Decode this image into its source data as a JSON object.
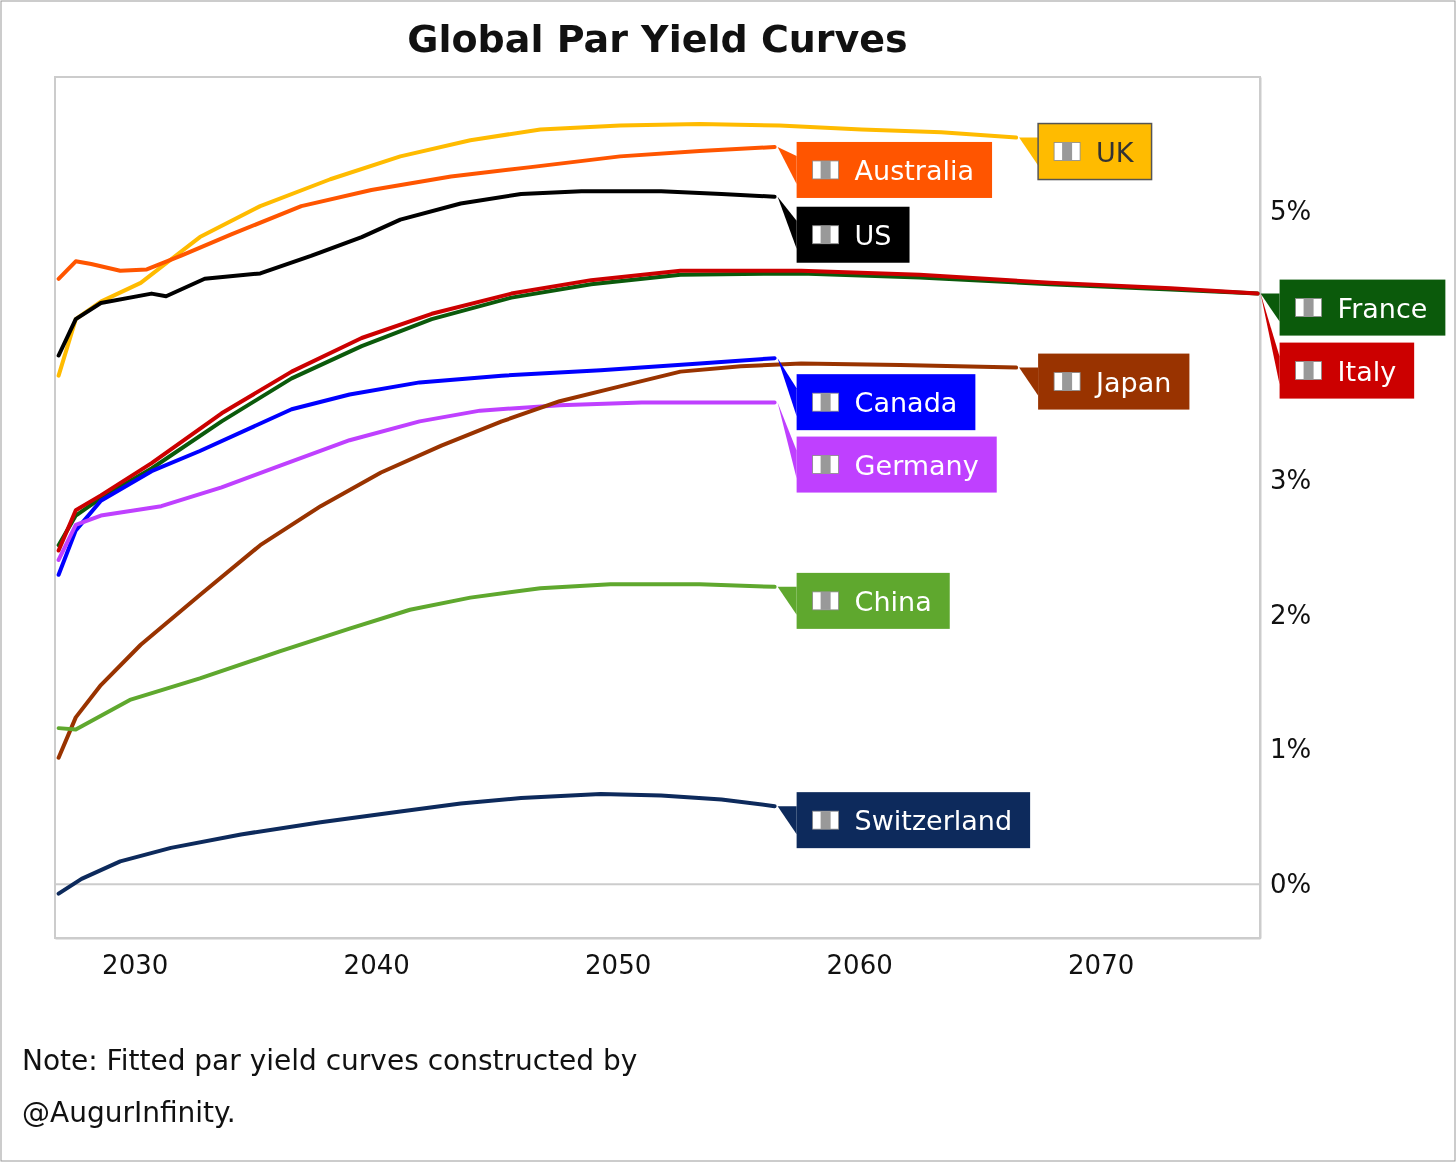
{
  "chart_data": {
    "type": "line",
    "title": "Global Par Yield Curves",
    "xlim": [
      2026.7,
      2076.6
    ],
    "xticks": [
      2030,
      2040,
      2050,
      2060,
      2070
    ],
    "ylim": [
      -0.4,
      6.0
    ],
    "yticks": [
      {
        "value": 0,
        "label": "0%"
      },
      {
        "value": 1,
        "label": "1%"
      },
      {
        "value": 2,
        "label": "2%"
      },
      {
        "value": 3,
        "label": "3%"
      },
      {
        "value": 5,
        "label": "5%"
      }
    ],
    "grid": false,
    "ref_lines": [
      {
        "axis": "y",
        "value": 0,
        "color": "#cccccc"
      }
    ],
    "annotations": [
      "Note: Fitted par yield curves constructed by @AugurInfinity."
    ],
    "series": [
      {
        "name": "UK",
        "color": "#ffbb00",
        "x": [
          2026.85,
          2027.56,
          2028.6,
          2030.25,
          2032.7,
          2035.2,
          2038.1,
          2041.0,
          2043.9,
          2046.8,
          2050.1,
          2053.4,
          2056.7,
          2060.1,
          2063.4,
          2066.5
        ],
        "values": [
          3.78,
          4.2,
          4.33,
          4.47,
          4.81,
          5.04,
          5.24,
          5.41,
          5.53,
          5.61,
          5.64,
          5.65,
          5.64,
          5.61,
          5.59,
          5.55
        ]
      },
      {
        "name": "Australia",
        "color": "#ff5500",
        "x": [
          2026.85,
          2027.56,
          2028.2,
          2029.4,
          2030.5,
          2031.9,
          2034.0,
          2036.9,
          2039.8,
          2043.1,
          2046.4,
          2050.1,
          2053.4,
          2056.5
        ],
        "values": [
          4.5,
          4.63,
          4.61,
          4.56,
          4.57,
          4.67,
          4.83,
          5.04,
          5.16,
          5.26,
          5.33,
          5.41,
          5.45,
          5.48
        ]
      },
      {
        "name": "US",
        "color": "#000000",
        "x": [
          2026.85,
          2027.56,
          2028.6,
          2030.7,
          2031.3,
          2032.9,
          2035.2,
          2037.3,
          2039.4,
          2041.0,
          2043.5,
          2046.0,
          2048.5,
          2051.8,
          2054.3,
          2056.5
        ],
        "values": [
          3.93,
          4.2,
          4.32,
          4.39,
          4.37,
          4.5,
          4.54,
          4.67,
          4.81,
          4.94,
          5.06,
          5.13,
          5.15,
          5.15,
          5.13,
          5.11
        ]
      },
      {
        "name": "France",
        "color": "#0b5a0b",
        "x": [
          2026.85,
          2027.56,
          2028.6,
          2030.7,
          2033.6,
          2036.5,
          2039.4,
          2042.3,
          2045.6,
          2048.9,
          2052.6,
          2057.6,
          2062.5,
          2067.9,
          2072.9,
          2076.5
        ],
        "values": [
          2.52,
          2.74,
          2.87,
          3.09,
          3.44,
          3.76,
          4.0,
          4.2,
          4.36,
          4.46,
          4.53,
          4.54,
          4.51,
          4.46,
          4.42,
          4.39
        ]
      },
      {
        "name": "Italy",
        "color": "#cc0000",
        "x": [
          2026.85,
          2027.56,
          2028.6,
          2030.7,
          2033.6,
          2036.5,
          2039.4,
          2042.3,
          2045.6,
          2048.9,
          2052.6,
          2057.6,
          2062.5,
          2067.9,
          2072.9,
          2076.5
        ],
        "values": [
          2.48,
          2.78,
          2.89,
          3.13,
          3.5,
          3.81,
          4.06,
          4.24,
          4.39,
          4.49,
          4.56,
          4.56,
          4.53,
          4.47,
          4.43,
          4.39
        ]
      },
      {
        "name": "Canada",
        "color": "#0000ff",
        "x": [
          2026.85,
          2027.56,
          2028.6,
          2030.7,
          2032.7,
          2036.5,
          2038.9,
          2041.8,
          2045.2,
          2049.3,
          2053.4,
          2056.5
        ],
        "values": [
          2.3,
          2.63,
          2.85,
          3.07,
          3.22,
          3.53,
          3.64,
          3.73,
          3.78,
          3.82,
          3.87,
          3.91
        ]
      },
      {
        "name": "Germany",
        "color": "#bf40ff",
        "x": [
          2026.85,
          2027.56,
          2028.6,
          2031.1,
          2033.6,
          2036.0,
          2038.9,
          2041.8,
          2044.3,
          2047.6,
          2051.0,
          2056.5
        ],
        "values": [
          2.41,
          2.67,
          2.74,
          2.81,
          2.95,
          3.11,
          3.3,
          3.44,
          3.52,
          3.56,
          3.58,
          3.58
        ]
      },
      {
        "name": "Japan",
        "color": "#993300",
        "x": [
          2026.85,
          2027.56,
          2028.6,
          2030.25,
          2032.7,
          2035.2,
          2037.7,
          2040.2,
          2042.7,
          2045.2,
          2047.6,
          2050.1,
          2052.6,
          2055.1,
          2057.6,
          2061.7,
          2066.5
        ],
        "values": [
          0.94,
          1.24,
          1.48,
          1.78,
          2.15,
          2.52,
          2.81,
          3.06,
          3.26,
          3.44,
          3.59,
          3.7,
          3.81,
          3.85,
          3.87,
          3.86,
          3.84
        ]
      },
      {
        "name": "China",
        "color": "#5fa82e",
        "x": [
          2026.85,
          2027.56,
          2029.8,
          2032.7,
          2036.0,
          2038.9,
          2041.4,
          2043.9,
          2046.8,
          2049.7,
          2053.4,
          2056.5
        ],
        "values": [
          1.16,
          1.15,
          1.37,
          1.53,
          1.73,
          1.9,
          2.04,
          2.13,
          2.2,
          2.23,
          2.23,
          2.21
        ]
      },
      {
        "name": "Switzerland",
        "color": "#0d2a5c",
        "x": [
          2026.85,
          2027.8,
          2029.4,
          2031.5,
          2034.4,
          2037.7,
          2041.0,
          2043.5,
          2046.0,
          2049.3,
          2051.8,
          2054.3,
          2056.5
        ],
        "values": [
          -0.07,
          0.04,
          0.17,
          0.27,
          0.37,
          0.46,
          0.54,
          0.6,
          0.64,
          0.67,
          0.66,
          0.63,
          0.58
        ]
      }
    ]
  }
}
